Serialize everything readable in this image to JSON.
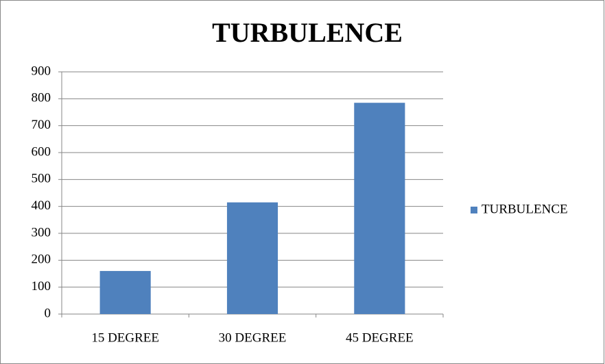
{
  "chart_data": {
    "type": "bar",
    "title": "TURBULENCE",
    "categories": [
      "15 DEGREE",
      "30 DEGREE",
      "45 DEGREE"
    ],
    "series": [
      {
        "name": "TURBULENCE",
        "color": "#4f81bd",
        "values": [
          160,
          415,
          785
        ]
      }
    ],
    "ylim": [
      0,
      900
    ],
    "yticks": [
      0,
      100,
      200,
      300,
      400,
      500,
      600,
      700,
      800,
      900
    ],
    "grid": true,
    "legend": "right"
  }
}
